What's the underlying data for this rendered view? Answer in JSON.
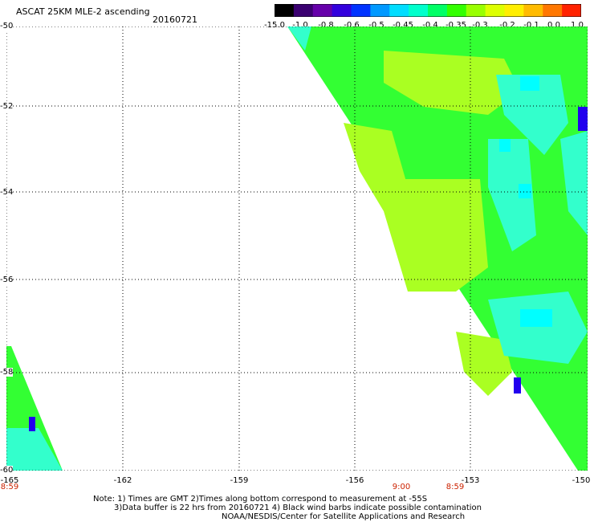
{
  "header": {
    "title": "ASCAT 25KM MLE-2 ascending",
    "date": "20160721"
  },
  "colorbar": {
    "labels": [
      "-15.0",
      "-1.0",
      "-0.8",
      "-0.6",
      "-0.5",
      "-0.45",
      "-0.4",
      "-0.35",
      "-0.3",
      "-0.2",
      "-0.1",
      "0.0",
      "1.0"
    ],
    "colors": [
      "#000000",
      "#3a0070",
      "#6600aa",
      "#3300dd",
      "#0033ff",
      "#0099ff",
      "#00ddff",
      "#00ffcc",
      "#00ff66",
      "#33ff00",
      "#99ff00",
      "#ddff00",
      "#ffee00",
      "#ffbb00",
      "#ff7700",
      "#ff2200"
    ]
  },
  "map": {
    "latitude_labels": [
      "-50",
      "-52",
      "-54",
      "-56",
      "-58",
      "-60"
    ],
    "longitude_labels": [
      "-165",
      "-162",
      "-159",
      "-156",
      "-153",
      "-150"
    ],
    "time_labels": [
      "8:59",
      "9:00",
      "8:59"
    ],
    "colors": {
      "grid": "#000000",
      "green": "#33ff33",
      "lime": "#aaff22",
      "aqua": "#33ffcc",
      "cyan": "#00ffff",
      "blue": "#2200ee"
    }
  },
  "notes": {
    "line1": "Note: 1) Times are GMT 2)Times along bottom correspond to measurement at -55S",
    "line2": "3)Data buffer is 22 hrs from 20160721 4) Black wind barbs indicate possible contamination",
    "line3": "NOAA/NESDIS/Center for Satellite Applications and Research"
  }
}
